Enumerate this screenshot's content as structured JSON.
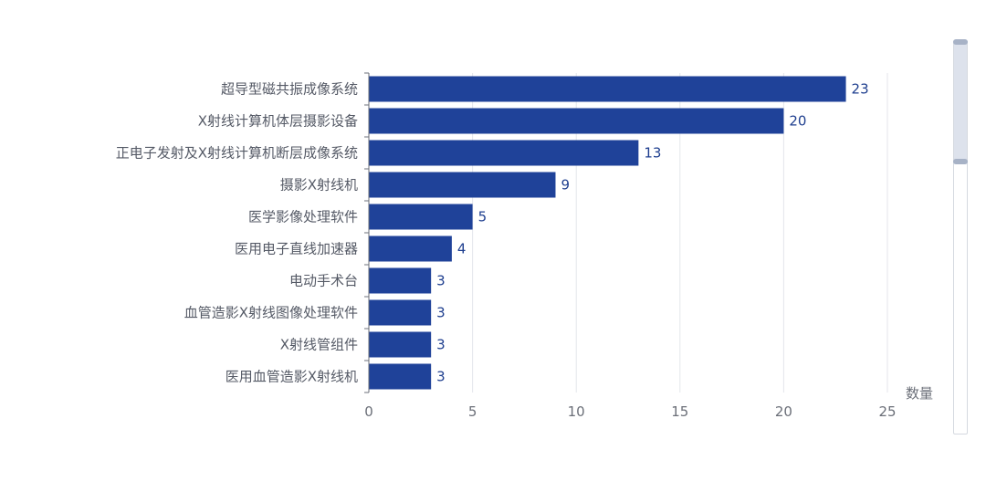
{
  "chart_data": {
    "type": "bar",
    "orientation": "horizontal",
    "categories": [
      "超导型磁共振成像系统",
      "X射线计算机体层摄影设备",
      "正电子发射及X射线计算机断层成像系统",
      "摄影X射线机",
      "医学影像处理软件",
      "医用电子直线加速器",
      "电动手术台",
      "血管造影X射线图像处理软件",
      "X射线管组件",
      "医用血管造影X射线机"
    ],
    "values": [
      23,
      20,
      13,
      9,
      5,
      4,
      3,
      3,
      3,
      3
    ],
    "xlabel": "数量",
    "ylabel": "",
    "xlim": [
      0,
      25
    ],
    "xticks": [
      0,
      5,
      10,
      15,
      20,
      25
    ],
    "grid": "vertical",
    "data_labels": true,
    "bar_color": "#1f4299",
    "label_color": "#1f3f8f",
    "grid_color": "#e4e6eb",
    "axis_color": "#6b6f78"
  },
  "datazoom": {
    "orientation": "vertical",
    "window_fraction": 0.31
  }
}
